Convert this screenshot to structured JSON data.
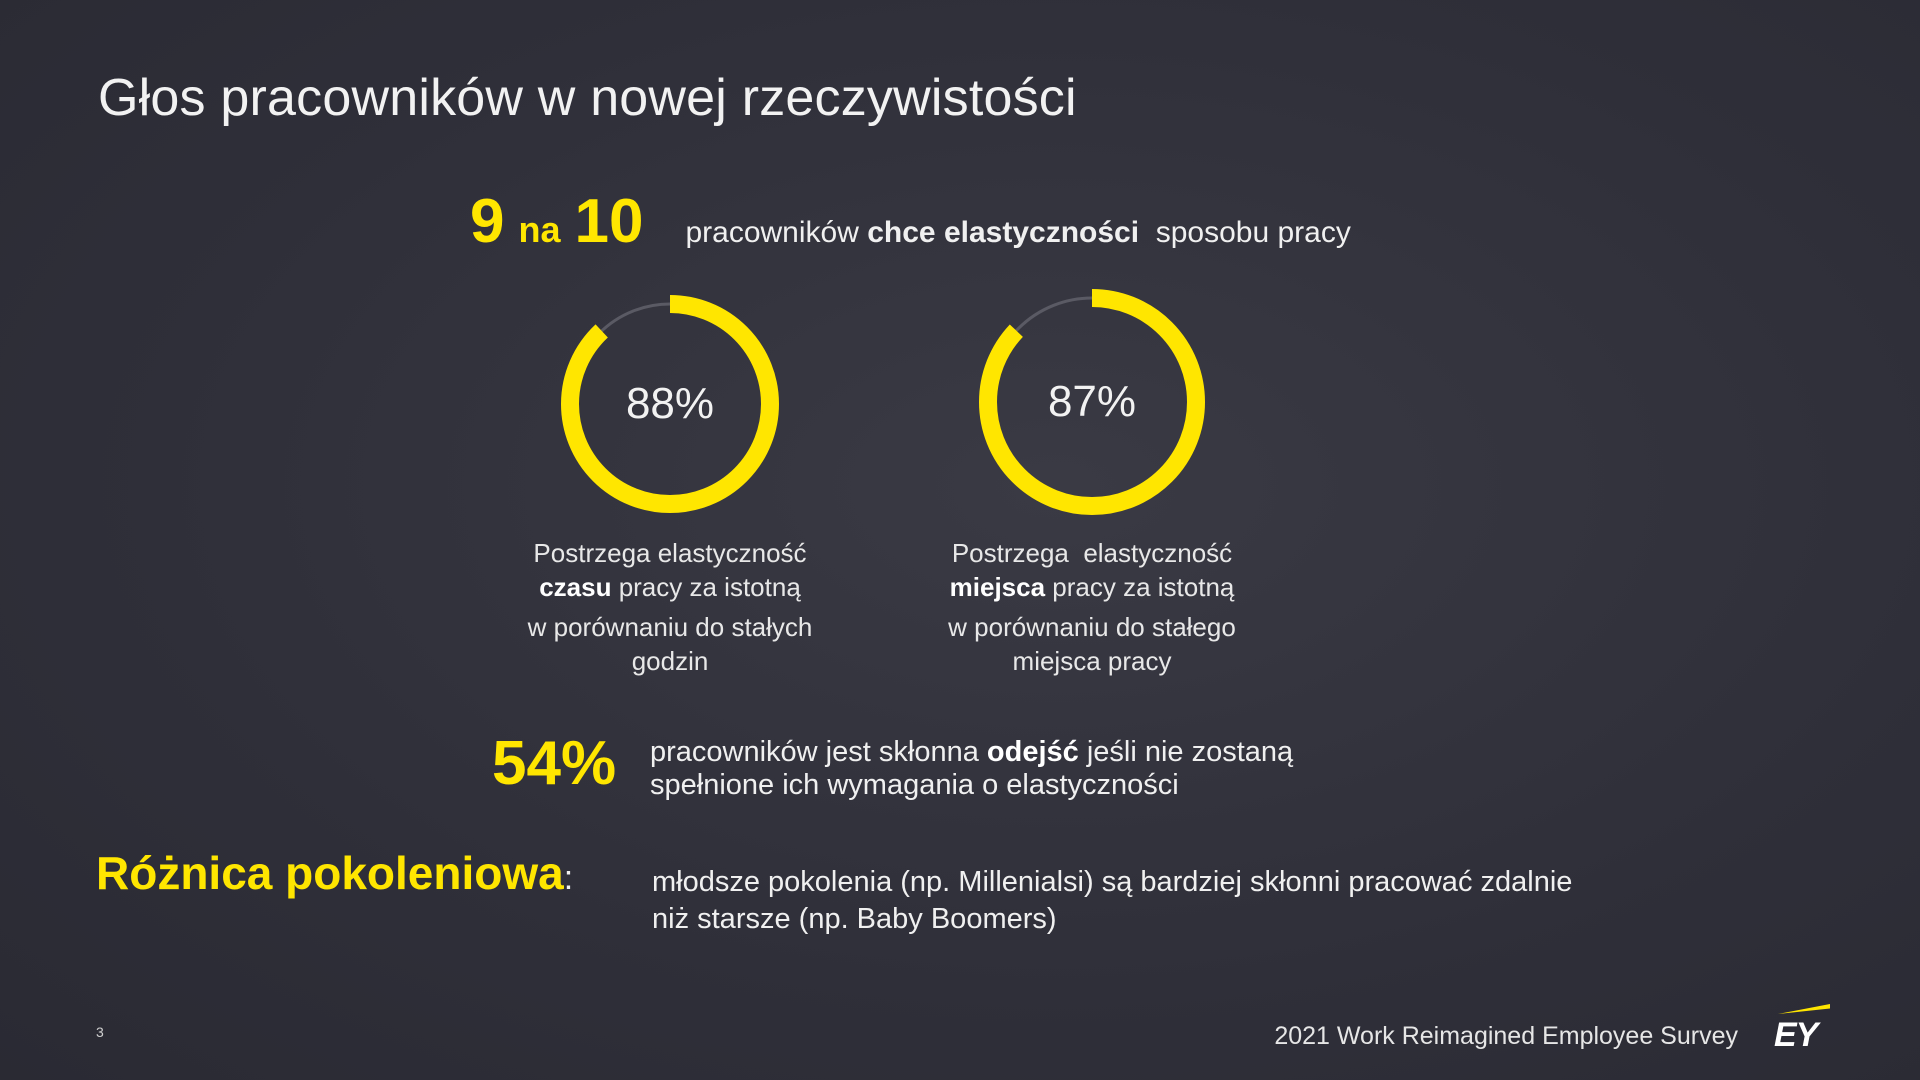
{
  "slide": {
    "title": "Głos pracowników w nowej rzeczywistości",
    "headline": {
      "num1": "9",
      "na": "na",
      "num2": "10",
      "text_pre": "pracowników",
      "text_bold": "chce elastyczności",
      "text_post": "sposobu pracy"
    },
    "donuts": [
      {
        "value": 88,
        "label": "88%",
        "caption_line1": "Postrzega elastyczność",
        "caption_bold": "czasu",
        "caption_line2_rest": " pracy za istotną",
        "caption_line3": "w porównaniu do stałych",
        "caption_line4": "godzin"
      },
      {
        "value": 87,
        "label": "87%",
        "caption_line1": "Postrzega  elastyczność",
        "caption_bold": "miejsca",
        "caption_line2_rest": " pracy za istotną",
        "caption_line3": "w porównaniu do stałego",
        "caption_line4": "miejsca pracy"
      }
    ],
    "stat": {
      "value": "54%",
      "line1_pre": "pracowników jest skłonna ",
      "line1_bold": "odejść",
      "line1_post": " jeśli nie zostaną",
      "line2": "spełnione ich wymagania o elastyczności"
    },
    "generation": {
      "title": "Różnica pokoleniowa",
      "colon": ":",
      "line1": "młodsze pokolenia (np. Millenialsi) są bardziej skłonni pracować zdalnie",
      "line2": "niż starsze (np. Baby Boomers)"
    },
    "page_number": "3",
    "footer": "2021 Work Reimagined Employee Survey",
    "logo_text": "EY",
    "colors": {
      "accent": "#ffe600",
      "background": "#2e2e38",
      "track": "#5a5a64"
    }
  }
}
